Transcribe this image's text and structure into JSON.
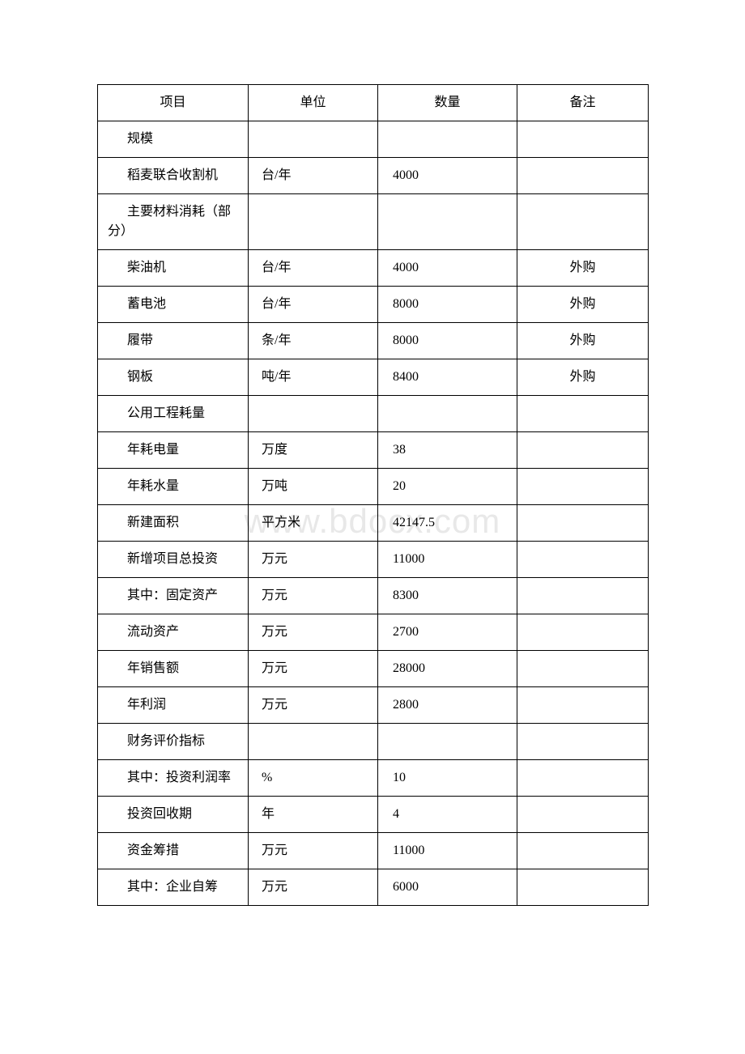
{
  "watermark": "www.bdocx.com",
  "table": {
    "headers": {
      "item": "项目",
      "unit": "单位",
      "qty": "数量",
      "note": "备注"
    },
    "rows": [
      {
        "item": "规模",
        "unit": "",
        "qty": "",
        "note": "",
        "wrap": false
      },
      {
        "item": "稻麦联合收割机",
        "unit": "台/年",
        "qty": "4000",
        "note": "",
        "wrap": true
      },
      {
        "item": "主要材料消耗（部分）",
        "unit": "",
        "qty": "",
        "note": "",
        "wrap": true
      },
      {
        "item": "柴油机",
        "unit": "台/年",
        "qty": "4000",
        "note": "外购",
        "wrap": false,
        "noteCenter": true
      },
      {
        "item": "蓄电池",
        "unit": "台/年",
        "qty": "8000",
        "note": "外购",
        "wrap": false,
        "noteCenter": true
      },
      {
        "item": "履带",
        "unit": "条/年",
        "qty": "8000",
        "note": "外购",
        "wrap": false,
        "noteCenter": true
      },
      {
        "item": "钢板",
        "unit": "吨/年",
        "qty": "8400",
        "note": "外购",
        "wrap": false,
        "noteCenter": true
      },
      {
        "item": "公用工程耗量",
        "unit": "",
        "qty": "",
        "note": "",
        "wrap": true
      },
      {
        "item": "年耗电量",
        "unit": "万度",
        "qty": "38",
        "note": "",
        "wrap": false
      },
      {
        "item": "年耗水量",
        "unit": "万吨",
        "qty": "20",
        "note": "",
        "wrap": false
      },
      {
        "item": "新建面积",
        "unit": "平方米",
        "qty": "42147.5",
        "note": "",
        "wrap": false
      },
      {
        "item": "新增项目总投资",
        "unit": "万元",
        "qty": "11000",
        "note": "",
        "wrap": true
      },
      {
        "item": "其中：固定资产",
        "unit": "万元",
        "qty": "8300",
        "note": "",
        "wrap": true
      },
      {
        "item": "流动资产",
        "unit": "万元",
        "qty": "2700",
        "note": "",
        "wrap": false
      },
      {
        "item": "年销售额",
        "unit": "万元",
        "qty": "28000",
        "note": "",
        "wrap": false
      },
      {
        "item": "年利润",
        "unit": "万元",
        "qty": "2800",
        "note": "",
        "wrap": false
      },
      {
        "item": "财务评价指标",
        "unit": "",
        "qty": "",
        "note": "",
        "wrap": true
      },
      {
        "item": "其中：投资利润率",
        "unit": "%",
        "qty": "10",
        "note": "",
        "wrap": true
      },
      {
        "item": "投资回收期",
        "unit": "年",
        "qty": "4",
        "note": "",
        "wrap": false
      },
      {
        "item": "资金筹措",
        "unit": "万元",
        "qty": "11000",
        "note": "",
        "wrap": false
      },
      {
        "item": "其中：企业自筹",
        "unit": "万元",
        "qty": "6000",
        "note": "",
        "wrap": true
      }
    ]
  }
}
